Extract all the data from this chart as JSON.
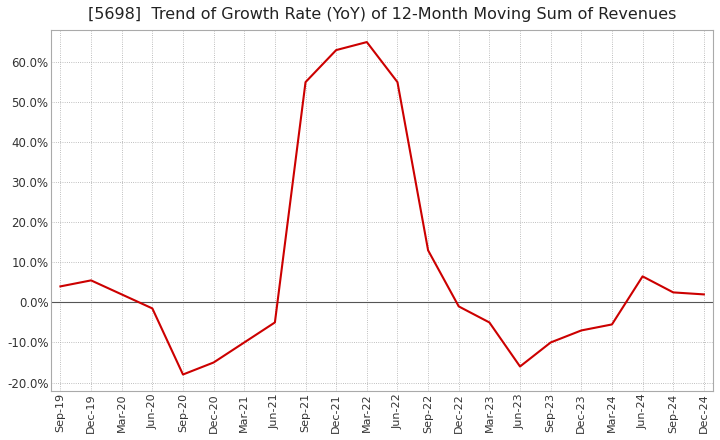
{
  "title": "[5698]  Trend of Growth Rate (YoY) of 12-Month Moving Sum of Revenues",
  "title_fontsize": 11.5,
  "line_color": "#cc0000",
  "background_color": "#ffffff",
  "grid_color": "#aaaaaa",
  "zero_line_color": "#555555",
  "border_color": "#aaaaaa",
  "ylim": [
    -22,
    68
  ],
  "yticks": [
    -20,
    -10,
    0,
    10,
    20,
    30,
    40,
    50,
    60
  ],
  "x_labels": [
    "Sep-19",
    "Dec-19",
    "Mar-20",
    "Jun-20",
    "Sep-20",
    "Dec-20",
    "Mar-21",
    "Jun-21",
    "Sep-21",
    "Dec-21",
    "Mar-22",
    "Jun-22",
    "Sep-22",
    "Dec-22",
    "Mar-23",
    "Jun-23",
    "Sep-23",
    "Dec-23",
    "Mar-24",
    "Jun-24",
    "Sep-24",
    "Dec-24"
  ],
  "y_values": [
    4.0,
    5.5,
    2.0,
    -1.5,
    -18.0,
    -15.0,
    -10.0,
    -5.0,
    55.0,
    63.0,
    65.0,
    55.0,
    13.0,
    -1.0,
    -5.0,
    -16.0,
    -10.0,
    -7.0,
    -5.5,
    6.5,
    2.5,
    2.0
  ]
}
